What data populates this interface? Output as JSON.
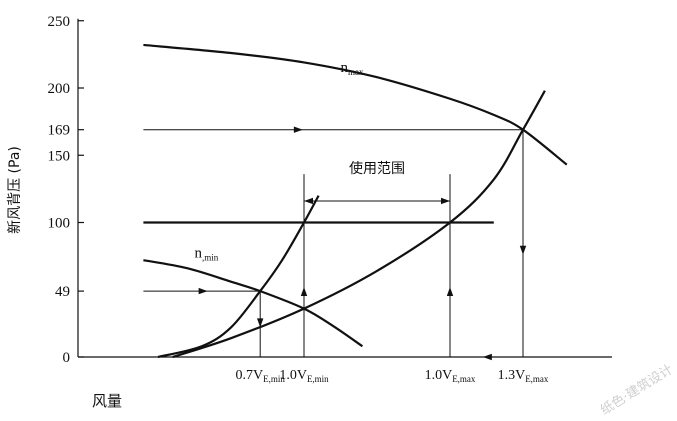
{
  "chart_data": {
    "type": "line",
    "ylabel": "新风背压 (Pa)",
    "xlabel": "风量",
    "ylim": [
      0,
      250
    ],
    "y_ticks": [
      0,
      49,
      100,
      150,
      169,
      200,
      250
    ],
    "x_ticks": [
      {
        "x": 0.7,
        "main": "0.7V",
        "sub": "E,min"
      },
      {
        "x": 1.0,
        "main": "1.0V",
        "sub": "E,min"
      },
      {
        "x": 2.0,
        "main": "1.0V",
        "sub": "E,max"
      },
      {
        "x": 2.5,
        "main": "1.3V",
        "sub": "E,max"
      }
    ],
    "series": [
      {
        "name": "n",
        "name_sub": "max",
        "label_at": [
          1.25,
          212
        ],
        "points": [
          [
            -0.1,
            232
          ],
          [
            0.5,
            226
          ],
          [
            1.0,
            219
          ],
          [
            1.5,
            208
          ],
          [
            2.0,
            192
          ],
          [
            2.3,
            180
          ],
          [
            2.5,
            169
          ],
          [
            2.8,
            143
          ]
        ]
      },
      {
        "name": "n",
        "name_sub": ",min",
        "label_at": [
          0.25,
          74
        ],
        "points": [
          [
            -0.1,
            72
          ],
          [
            0.2,
            66
          ],
          [
            0.5,
            56
          ],
          [
            0.7,
            49
          ],
          [
            1.0,
            36
          ],
          [
            1.2,
            23
          ],
          [
            1.4,
            8
          ]
        ]
      },
      {
        "name": "",
        "points": [
          [
            0.0,
            0
          ],
          [
            0.3,
            8
          ],
          [
            0.5,
            22
          ],
          [
            0.7,
            49
          ],
          [
            0.85,
            72
          ],
          [
            1.0,
            100
          ],
          [
            1.1,
            120
          ]
        ]
      },
      {
        "name": "",
        "points": [
          [
            0.1,
            0
          ],
          [
            0.5,
            14
          ],
          [
            1.0,
            36
          ],
          [
            1.5,
            64
          ],
          [
            2.0,
            100
          ],
          [
            2.3,
            132
          ],
          [
            2.5,
            169
          ],
          [
            2.65,
            198
          ]
        ]
      },
      {
        "name": "",
        "points": [
          [
            -0.1,
            100
          ],
          [
            2.3,
            100
          ]
        ]
      }
    ],
    "guides": [
      {
        "from": [
          -0.1,
          169
        ],
        "to": [
          2.5,
          169
        ],
        "arrow_at": 0.42
      },
      {
        "from": [
          -0.1,
          49
        ],
        "to": [
          0.7,
          49
        ],
        "arrow_at": 0.55
      },
      {
        "from": [
          0.7,
          49
        ],
        "to": [
          0.7,
          0
        ],
        "arrow_at": 0.55
      },
      {
        "from": [
          1.0,
          0
        ],
        "to": [
          1.0,
          100
        ],
        "arrow_at": 0.52
      },
      {
        "from": [
          2.0,
          0
        ],
        "to": [
          2.0,
          100
        ],
        "arrow_at": 0.52
      },
      {
        "from": [
          2.5,
          169
        ],
        "to": [
          2.5,
          0
        ],
        "arrow_at": 0.55
      },
      {
        "from": [
          2.5,
          0
        ],
        "to": [
          2.0,
          0
        ],
        "arrow_at": 0.55
      }
    ],
    "range_annotation": {
      "label": "使用范围",
      "from": 1.0,
      "to": 2.0,
      "y": 116
    }
  },
  "watermark": "纸色·建筑设计"
}
